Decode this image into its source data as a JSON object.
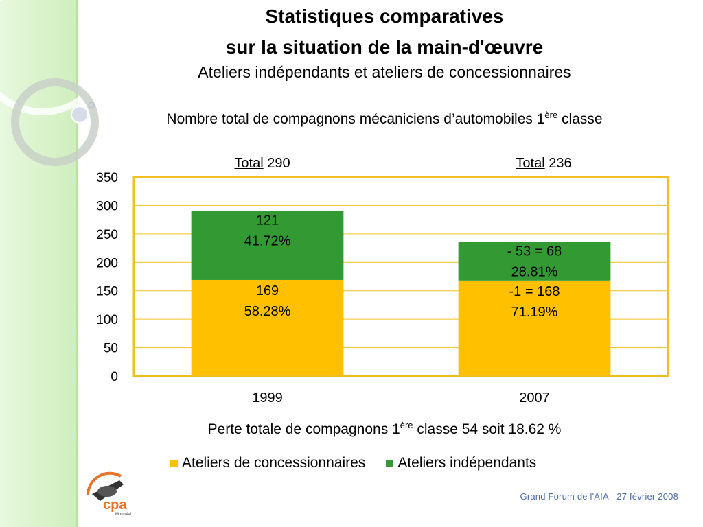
{
  "slide": {
    "title_line1": "Statistiques comparatives",
    "title_line2": "sur la situation de la main-d'œuvre",
    "subtitle": "Ateliers indépendants et ateliers de concessionnaires",
    "chart_title_main": "Nombre total de compagnons mécaniciens d’automobiles 1",
    "chart_title_sup": "ère",
    "chart_title_end": " classe",
    "note_main": "Perte totale de compagnons 1",
    "note_sup": "ère",
    "note_end": " classe 54 soit 18.62 %",
    "footer": "Grand Forum de l'AIA -  27 février 2008",
    "logo_text": "cpa",
    "logo_subtext": "Montréal"
  },
  "colors": {
    "concessionnaires": "#ffc000",
    "independants": "#339933",
    "frame": "#f0c020",
    "side_band": "#d8f2c8"
  },
  "chart_data": {
    "type": "bar",
    "stacked": true,
    "categories": [
      "1999",
      "2007"
    ],
    "series": [
      {
        "name": "Ateliers de concessionnaires",
        "values": [
          169,
          168
        ],
        "labels": [
          [
            "169",
            "58.28%"
          ],
          [
            "-1 = 168",
            "71.19%"
          ]
        ]
      },
      {
        "name": "Ateliers indépendants",
        "values": [
          121,
          68
        ],
        "labels": [
          [
            "121",
            "41.72%"
          ],
          [
            "- 53 = 68",
            "28.81%"
          ]
        ]
      }
    ],
    "totals": [
      {
        "label": "Total",
        "value": "290"
      },
      {
        "label": "Total",
        "value": "236"
      }
    ],
    "ylim": [
      0,
      350
    ],
    "yticks": [
      0,
      50,
      100,
      150,
      200,
      250,
      300,
      350
    ],
    "grid": true,
    "legend": "bottom"
  }
}
